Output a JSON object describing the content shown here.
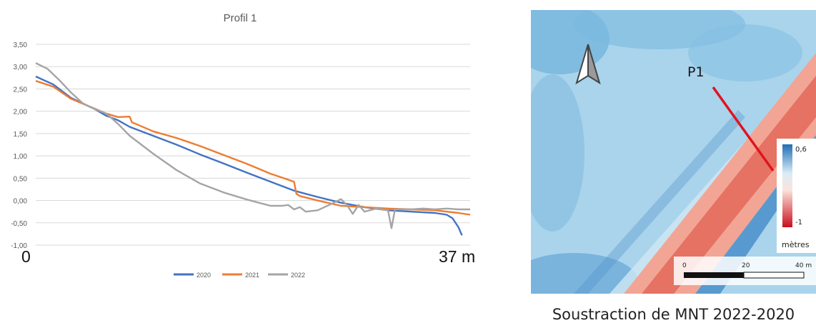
{
  "chart_data": {
    "type": "line",
    "title": "Profil 1",
    "xlabel": "",
    "ylabel": "",
    "x_start_label": "0",
    "x_end_label": "37 m",
    "xlim": [
      0,
      37
    ],
    "ylim": [
      -1.0,
      3.5
    ],
    "y_ticks": [
      "3,50",
      "3,00",
      "2,50",
      "2,00",
      "1,50",
      "1,00",
      "0,50",
      "0,00",
      "-0,50",
      "-1,00"
    ],
    "grid": true,
    "legend_position": "bottom",
    "series": [
      {
        "name": "2020",
        "color": "#4472c4",
        "x": [
          0,
          1.5,
          3,
          5,
          6,
          7,
          8,
          10,
          12,
          14,
          16,
          18,
          20,
          22,
          24,
          26,
          28,
          30,
          32,
          34,
          35,
          35.5,
          36,
          36.3
        ],
        "y": [
          2.78,
          2.6,
          2.3,
          2.05,
          1.9,
          1.8,
          1.65,
          1.45,
          1.25,
          1.03,
          0.83,
          0.62,
          0.42,
          0.22,
          0.08,
          -0.05,
          -0.15,
          -0.22,
          -0.25,
          -0.28,
          -0.32,
          -0.4,
          -0.6,
          -0.78
        ]
      },
      {
        "name": "2021",
        "color": "#ed7d31",
        "x": [
          0,
          1.5,
          3,
          5,
          6,
          7,
          8,
          8.2,
          8.5,
          10,
          12,
          14,
          16,
          18,
          20,
          22,
          22.2,
          22.5,
          24,
          26,
          28,
          30,
          32,
          34,
          36,
          37
        ],
        "y": [
          2.68,
          2.55,
          2.28,
          2.06,
          1.95,
          1.87,
          1.88,
          1.75,
          1.72,
          1.55,
          1.4,
          1.22,
          1.02,
          0.82,
          0.6,
          0.42,
          0.15,
          0.1,
          0.0,
          -0.12,
          -0.15,
          -0.18,
          -0.2,
          -0.22,
          -0.28,
          -0.32
        ]
      },
      {
        "name": "2022",
        "color": "#a5a5a5",
        "x": [
          0,
          1,
          2,
          3,
          4,
          5,
          6,
          7,
          8,
          10,
          12,
          14,
          16,
          18,
          19,
          20,
          21,
          21.5,
          22,
          22.5,
          23,
          24,
          25,
          26,
          26.5,
          27,
          27.5,
          28,
          29,
          30,
          30.3,
          30.6,
          31,
          32,
          33,
          34,
          35,
          36,
          37
        ],
        "y": [
          3.08,
          2.95,
          2.7,
          2.42,
          2.18,
          2.05,
          1.95,
          1.72,
          1.45,
          1.05,
          0.68,
          0.38,
          0.18,
          0.02,
          -0.05,
          -0.12,
          -0.12,
          -0.1,
          -0.2,
          -0.15,
          -0.25,
          -0.22,
          -0.1,
          0.03,
          -0.1,
          -0.3,
          -0.1,
          -0.25,
          -0.18,
          -0.22,
          -0.62,
          -0.2,
          -0.2,
          -0.2,
          -0.18,
          -0.2,
          -0.18,
          -0.2,
          -0.2
        ]
      }
    ]
  },
  "map": {
    "north_symbol": "N",
    "profile_label": "P1",
    "legend_max": "0,6",
    "legend_min": "-1",
    "legend_unit": "mètres",
    "scale_labels": [
      "0",
      "20",
      "40 m"
    ],
    "colors": {
      "background": "#a7d3ec",
      "band": "#ef8a7a",
      "band_core": "#e26457",
      "profile_line": "#e0141e",
      "dark_blue": "#2d76b6"
    }
  },
  "caption": "Soustraction de MNT 2022-2020"
}
